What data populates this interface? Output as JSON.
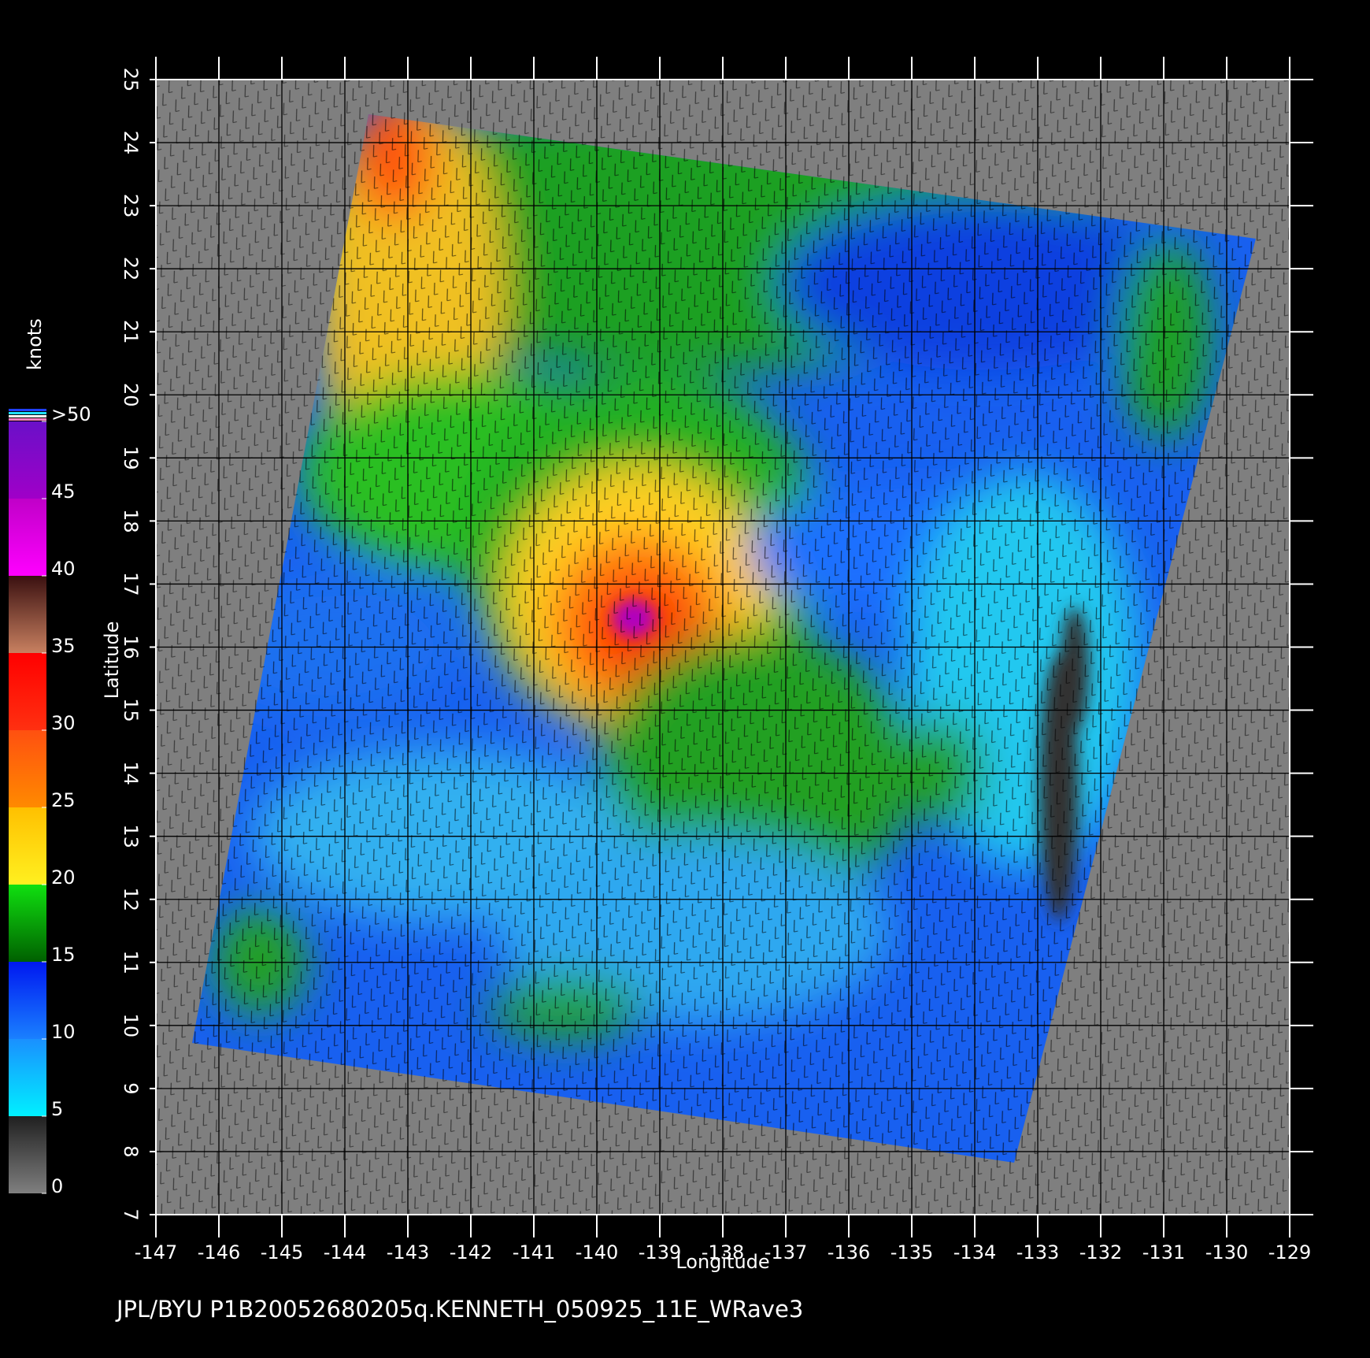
{
  "chart_data": {
    "type": "wind-map",
    "footer": "JPL/BYU  P1B20052680205q.KENNETH_050925_11E_WRave3",
    "x_label": "Longitude",
    "y_label": "Latitude",
    "xlim": [
      -147,
      -129
    ],
    "ylim": [
      7,
      25
    ],
    "xticks": [
      -147,
      -146,
      -145,
      -144,
      -143,
      -142,
      -141,
      -140,
      -139,
      -138,
      -137,
      -136,
      -135,
      -134,
      -133,
      -132,
      -131,
      -130,
      -129
    ],
    "yticks": [
      7,
      8,
      9,
      10,
      11,
      12,
      13,
      14,
      15,
      16,
      17,
      18,
      19,
      20,
      21,
      22,
      23,
      24,
      25
    ],
    "grid": true,
    "colorbar": {
      "label": "knots",
      "lim": [
        0,
        50
      ],
      "ticks": [
        0,
        5,
        10,
        15,
        20,
        25,
        30,
        35,
        40,
        {
          "value": 50,
          "label": ">50"
        },
        45
      ],
      "colors": [
        [
          "#7f7f7f",
          "#202020"
        ],
        [
          "#00f0ff",
          "#1a90ff"
        ],
        [
          "#1a80ff",
          "#0018f0"
        ],
        [
          "#006000",
          "#10e010"
        ],
        [
          "#fff020",
          "#ffc000"
        ],
        [
          "#ff8a00",
          "#ff5010"
        ],
        [
          "#ff3010",
          "#ff0000"
        ],
        [
          "#c88060",
          "#3a1010"
        ],
        [
          "#ff00ff",
          "#c000c8"
        ],
        [
          "#a000c8",
          "#6a10c8"
        ]
      ]
    }
  }
}
